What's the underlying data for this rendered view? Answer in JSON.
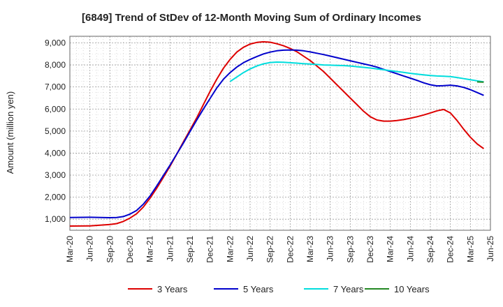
{
  "chart_data": {
    "type": "line",
    "title": "[6849]  Trend of StDev of 12-Month Moving Sum of Ordinary Incomes",
    "xlabel": "",
    "ylabel": "Amount (million yen)",
    "ylim": [
      500,
      9300
    ],
    "y_ticks": [
      1000,
      2000,
      3000,
      4000,
      5000,
      6000,
      7000,
      8000,
      9000
    ],
    "y_tick_labels": [
      "1,000",
      "2,000",
      "3,000",
      "4,000",
      "5,000",
      "6,000",
      "7,000",
      "8,000",
      "9,000"
    ],
    "x_tick_labels": [
      "Mar-20",
      "Jun-20",
      "Sep-20",
      "Dec-20",
      "Mar-21",
      "Jun-21",
      "Sep-21",
      "Dec-21",
      "Mar-22",
      "Jun-22",
      "Sep-22",
      "Dec-22",
      "Mar-23",
      "Jun-23",
      "Sep-23",
      "Dec-23",
      "Mar-24",
      "Jun-24",
      "Sep-24",
      "Dec-24",
      "Mar-25",
      "Jun-25"
    ],
    "x_range_months": [
      0,
      63
    ],
    "grid": true,
    "legend_position": "bottom",
    "series": [
      {
        "name": "3 Years",
        "color": "#dd0000",
        "points": [
          [
            0,
            690
          ],
          [
            3,
            700
          ],
          [
            6,
            760
          ],
          [
            7,
            800
          ],
          [
            8,
            900
          ],
          [
            9,
            1050
          ],
          [
            10,
            1250
          ],
          [
            11,
            1550
          ],
          [
            12,
            1950
          ],
          [
            13,
            2400
          ],
          [
            14,
            2900
          ],
          [
            15,
            3400
          ],
          [
            16,
            3950
          ],
          [
            17,
            4500
          ],
          [
            18,
            5050
          ],
          [
            19,
            5600
          ],
          [
            20,
            6200
          ],
          [
            21,
            6800
          ],
          [
            22,
            7350
          ],
          [
            23,
            7850
          ],
          [
            24,
            8250
          ],
          [
            25,
            8580
          ],
          [
            26,
            8800
          ],
          [
            27,
            8950
          ],
          [
            28,
            9020
          ],
          [
            29,
            9050
          ],
          [
            30,
            9030
          ],
          [
            31,
            8960
          ],
          [
            32,
            8870
          ],
          [
            33,
            8750
          ],
          [
            34,
            8600
          ],
          [
            35,
            8400
          ],
          [
            36,
            8200
          ],
          [
            37,
            7950
          ],
          [
            38,
            7700
          ],
          [
            39,
            7400
          ],
          [
            40,
            7100
          ],
          [
            41,
            6800
          ],
          [
            42,
            6500
          ],
          [
            43,
            6200
          ],
          [
            44,
            5900
          ],
          [
            45,
            5650
          ],
          [
            46,
            5500
          ],
          [
            47,
            5450
          ],
          [
            48,
            5450
          ],
          [
            49,
            5480
          ],
          [
            50,
            5520
          ],
          [
            51,
            5580
          ],
          [
            52,
            5650
          ],
          [
            53,
            5730
          ],
          [
            54,
            5820
          ],
          [
            55,
            5920
          ],
          [
            56,
            5980
          ],
          [
            57,
            5820
          ],
          [
            58,
            5480
          ],
          [
            59,
            5080
          ],
          [
            60,
            4720
          ],
          [
            61,
            4420
          ],
          [
            62,
            4200
          ]
        ]
      },
      {
        "name": "5 Years",
        "color": "#0000cc",
        "points": [
          [
            0,
            1080
          ],
          [
            3,
            1090
          ],
          [
            6,
            1070
          ],
          [
            7,
            1080
          ],
          [
            8,
            1120
          ],
          [
            9,
            1230
          ],
          [
            10,
            1400
          ],
          [
            11,
            1680
          ],
          [
            12,
            2050
          ],
          [
            13,
            2500
          ],
          [
            14,
            2980
          ],
          [
            15,
            3450
          ],
          [
            16,
            3950
          ],
          [
            17,
            4450
          ],
          [
            18,
            4980
          ],
          [
            19,
            5500
          ],
          [
            20,
            6000
          ],
          [
            21,
            6480
          ],
          [
            22,
            6950
          ],
          [
            23,
            7350
          ],
          [
            24,
            7650
          ],
          [
            25,
            7900
          ],
          [
            26,
            8100
          ],
          [
            27,
            8250
          ],
          [
            28,
            8380
          ],
          [
            29,
            8500
          ],
          [
            30,
            8580
          ],
          [
            31,
            8640
          ],
          [
            32,
            8670
          ],
          [
            33,
            8680
          ],
          [
            34,
            8670
          ],
          [
            35,
            8640
          ],
          [
            36,
            8590
          ],
          [
            37,
            8530
          ],
          [
            38,
            8470
          ],
          [
            39,
            8400
          ],
          [
            40,
            8330
          ],
          [
            41,
            8260
          ],
          [
            42,
            8190
          ],
          [
            43,
            8120
          ],
          [
            44,
            8050
          ],
          [
            45,
            7980
          ],
          [
            46,
            7900
          ],
          [
            47,
            7800
          ],
          [
            48,
            7700
          ],
          [
            49,
            7600
          ],
          [
            50,
            7500
          ],
          [
            51,
            7400
          ],
          [
            52,
            7300
          ],
          [
            53,
            7190
          ],
          [
            54,
            7100
          ],
          [
            55,
            7050
          ],
          [
            56,
            7060
          ],
          [
            57,
            7080
          ],
          [
            58,
            7050
          ],
          [
            59,
            6980
          ],
          [
            60,
            6880
          ],
          [
            61,
            6750
          ],
          [
            62,
            6620
          ]
        ]
      },
      {
        "name": "7 Years",
        "color": "#00dddd",
        "points": [
          [
            24,
            7250
          ],
          [
            25,
            7450
          ],
          [
            26,
            7650
          ],
          [
            27,
            7820
          ],
          [
            28,
            7950
          ],
          [
            29,
            8050
          ],
          [
            30,
            8110
          ],
          [
            31,
            8130
          ],
          [
            32,
            8120
          ],
          [
            33,
            8100
          ],
          [
            34,
            8080
          ],
          [
            35,
            8060
          ],
          [
            36,
            8040
          ],
          [
            37,
            8020
          ],
          [
            38,
            8000
          ],
          [
            39,
            7990
          ],
          [
            40,
            7980
          ],
          [
            41,
            7970
          ],
          [
            42,
            7950
          ],
          [
            43,
            7920
          ],
          [
            44,
            7890
          ],
          [
            45,
            7860
          ],
          [
            46,
            7820
          ],
          [
            47,
            7780
          ],
          [
            48,
            7740
          ],
          [
            49,
            7700
          ],
          [
            50,
            7660
          ],
          [
            51,
            7620
          ],
          [
            52,
            7580
          ],
          [
            53,
            7550
          ],
          [
            54,
            7520
          ],
          [
            55,
            7500
          ],
          [
            56,
            7490
          ],
          [
            57,
            7470
          ],
          [
            58,
            7430
          ],
          [
            59,
            7380
          ],
          [
            60,
            7330
          ],
          [
            61,
            7280
          ],
          [
            62,
            7230
          ]
        ]
      },
      {
        "name": "10 Years",
        "color": "#228822",
        "points": [
          [
            61,
            7230
          ],
          [
            62,
            7220
          ]
        ]
      }
    ]
  }
}
